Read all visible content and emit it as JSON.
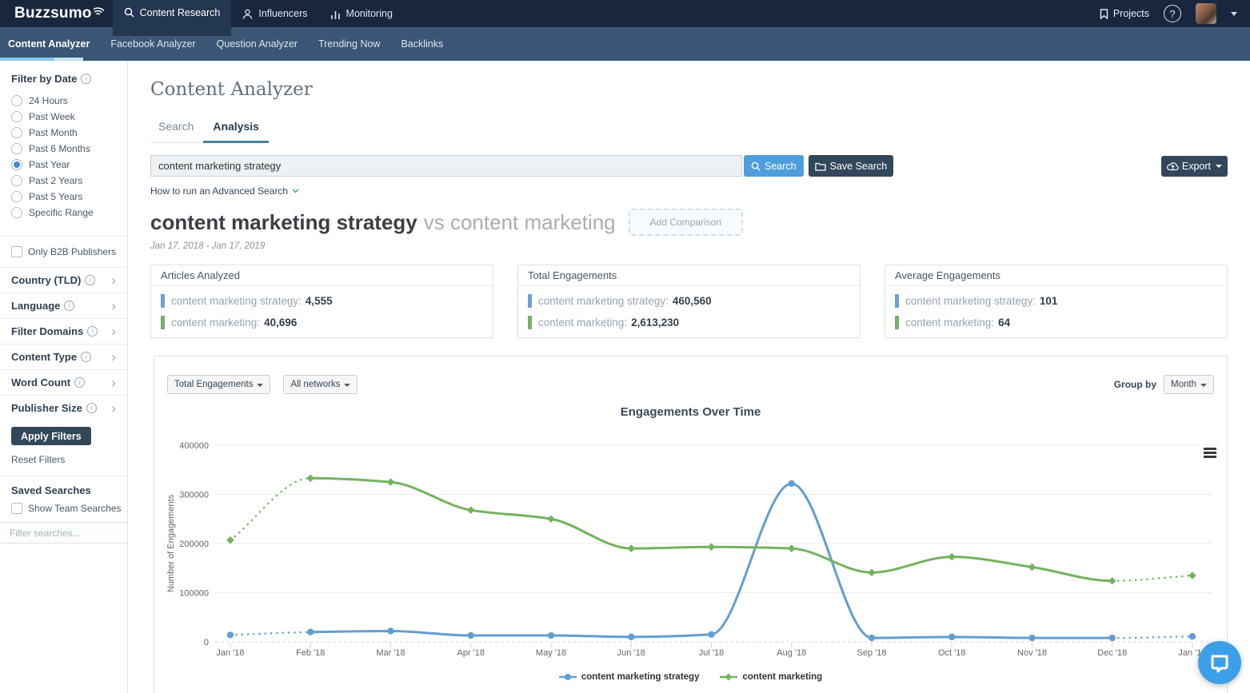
{
  "topnav": {
    "logo": "Buzzsumo",
    "items": [
      {
        "label": "Content Research",
        "active": true
      },
      {
        "label": "Influencers",
        "active": false
      },
      {
        "label": "Monitoring",
        "active": false
      }
    ],
    "projects": "Projects"
  },
  "subnav": {
    "items": [
      {
        "label": "Content Analyzer",
        "active": true
      },
      {
        "label": "Facebook Analyzer",
        "active": false
      },
      {
        "label": "Question Analyzer",
        "active": false
      },
      {
        "label": "Trending Now",
        "active": false
      },
      {
        "label": "Backlinks",
        "active": false
      }
    ]
  },
  "sidebar": {
    "filter_by_date": "Filter by Date",
    "date_options": [
      {
        "label": "24 Hours",
        "selected": false
      },
      {
        "label": "Past Week",
        "selected": false
      },
      {
        "label": "Past Month",
        "selected": false
      },
      {
        "label": "Past 6 Months",
        "selected": false
      },
      {
        "label": "Past Year",
        "selected": true
      },
      {
        "label": "Past 2 Years",
        "selected": false
      },
      {
        "label": "Past 5 Years",
        "selected": false
      },
      {
        "label": "Specific Range",
        "selected": false
      }
    ],
    "b2b_label": "Only B2B Publishers",
    "sections": [
      {
        "label": "Country (TLD)"
      },
      {
        "label": "Language"
      },
      {
        "label": "Filter Domains"
      },
      {
        "label": "Content Type"
      },
      {
        "label": "Word Count"
      },
      {
        "label": "Publisher Size"
      }
    ],
    "apply_label": "Apply Filters",
    "reset_label": "Reset Filters",
    "saved_label": "Saved Searches",
    "show_team_label": "Show Team Searches",
    "filter_placeholder": "Filter searches..."
  },
  "main": {
    "title": "Content Analyzer",
    "tabs": [
      {
        "label": "Search",
        "active": false
      },
      {
        "label": "Analysis",
        "active": true
      }
    ],
    "search": {
      "value": "content marketing strategy",
      "search_button": "Search",
      "save_button": "Save Search",
      "export_button": "Export"
    },
    "advanced_link": "How to run an Advanced Search",
    "comparison": {
      "primary": "content marketing strategy",
      "vs": "vs content marketing",
      "add_button": "Add Comparison",
      "date_range": "Jan 17, 2018 - Jan 17, 2019"
    },
    "cards": [
      {
        "title": "Articles Analyzed",
        "rows": [
          {
            "label": "content marketing strategy:",
            "value": "4,555"
          },
          {
            "label": "content marketing:",
            "value": "40,696"
          }
        ]
      },
      {
        "title": "Total Engagements",
        "rows": [
          {
            "label": "content marketing strategy:",
            "value": "460,560"
          },
          {
            "label": "content marketing:",
            "value": "2,613,230"
          }
        ]
      },
      {
        "title": "Average Engagements",
        "rows": [
          {
            "label": "content marketing strategy:",
            "value": "101"
          },
          {
            "label": "content marketing:",
            "value": "64"
          }
        ]
      }
    ],
    "chart_controls": {
      "metric": "Total Engagements",
      "network": "All networks",
      "group_by_label": "Group by",
      "group_by_value": "Month"
    },
    "row_colors": {
      "blue": "#69a1d8",
      "green": "#71b464"
    }
  },
  "chart_data": {
    "type": "line",
    "title": "Engagements Over Time",
    "ylabel": "Number of Engagements",
    "ylim": [
      0,
      400000
    ],
    "yticks": [
      0,
      100000,
      200000,
      300000,
      400000
    ],
    "categories": [
      "Jan '18",
      "Feb '18",
      "Mar '18",
      "Apr '18",
      "May '18",
      "Jun '18",
      "Jul '18",
      "Aug '18",
      "Sep '18",
      "Oct '18",
      "Nov '18",
      "Dec '18",
      "Jan '19"
    ],
    "series": [
      {
        "name": "content marketing strategy",
        "color": "#639ed2",
        "marker": "circle",
        "dotted_segments": [
          0,
          11
        ],
        "values": [
          14000,
          20000,
          22000,
          13000,
          13000,
          10000,
          15000,
          322000,
          8000,
          10000,
          8000,
          8000,
          11000
        ]
      },
      {
        "name": "content marketing",
        "color": "#74b35e",
        "marker": "diamond",
        "dotted_segments": [
          0,
          11
        ],
        "values": [
          207000,
          333000,
          325000,
          268000,
          250000,
          190000,
          193000,
          190000,
          141000,
          173000,
          152000,
          124000,
          135000
        ]
      }
    ],
    "legend_position": "bottom",
    "grid": "horizontal"
  }
}
